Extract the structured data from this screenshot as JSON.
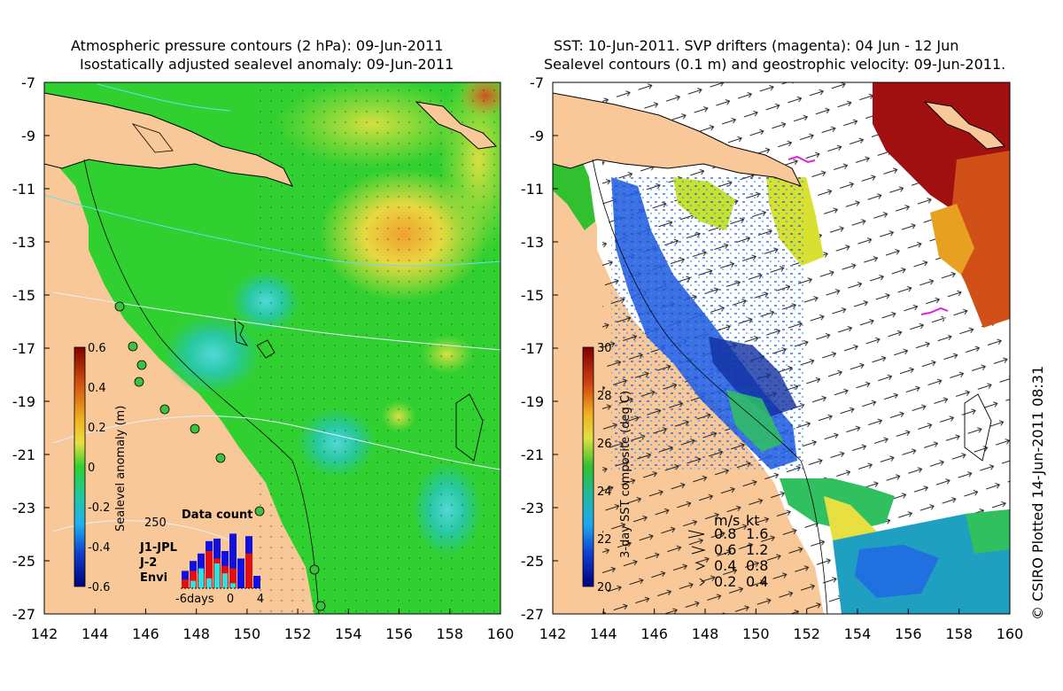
{
  "left_panel": {
    "title_line1": "Atmospheric pressure contours (2 hPa): 09-Jun-2011",
    "title_line2": "Isostatically adjusted sealevel anomaly: 09-Jun-2011",
    "colorbar_label": "Sealevel anomaly (m)",
    "colorbar_ticks": [
      "0.6",
      "0.4",
      "0.2",
      "0",
      "-0.2",
      "-0.4",
      "-0.6"
    ],
    "data_count": {
      "title": "Data count",
      "ymax_label": "250",
      "x_labels": [
        "-6days",
        "0",
        "4"
      ],
      "legend": [
        {
          "name": "J1-JPL",
          "color": "#1010e0"
        },
        {
          "name": "J-2",
          "color": "#e01010"
        },
        {
          "name": "Envi",
          "color": "#30e0e0"
        }
      ],
      "bars": [
        {
          "total": 70,
          "j2": 35,
          "envi": 0
        },
        {
          "total": 110,
          "j2": 70,
          "envi": 30
        },
        {
          "total": 140,
          "j2": 60,
          "envi": 80
        },
        {
          "total": 190,
          "j2": 150,
          "envi": 40
        },
        {
          "total": 200,
          "j2": 120,
          "envi": 100
        },
        {
          "total": 150,
          "j2": 90,
          "envi": 60
        },
        {
          "total": 220,
          "j2": 80,
          "envi": 20
        },
        {
          "total": 120,
          "j2": 0,
          "envi": 0
        },
        {
          "total": 210,
          "j2": 140,
          "envi": 0
        },
        {
          "total": 50,
          "j2": 0,
          "envi": 0
        }
      ]
    }
  },
  "right_panel": {
    "title_line1": "SST: 10-Jun-2011. SVP drifters (magenta): 04 Jun - 12 Jun",
    "title_line2": "Sealevel contours (0.1 m) and geostrophic velocity: 09-Jun-2011.",
    "colorbar_label": "3-day SST composite (deg C)",
    "colorbar_ticks": [
      "30",
      "28",
      "26",
      "24",
      "22",
      "20"
    ],
    "velocity_key": {
      "header_ms": "m/s",
      "header_kt": "kt",
      "rows": [
        {
          "ms": "0.8",
          "kt": "1.6"
        },
        {
          "ms": "0.6",
          "kt": "1.2"
        },
        {
          "ms": "0.4",
          "kt": "0.8"
        },
        {
          "ms": "0.2",
          "kt": "0.4"
        }
      ]
    }
  },
  "axes": {
    "lat_labels": [
      "-7",
      "-9",
      "-11",
      "-13",
      "-15",
      "-17",
      "-19",
      "-21",
      "-23",
      "-25",
      "-27"
    ],
    "lon_labels": [
      "142",
      "144",
      "146",
      "148",
      "150",
      "152",
      "154",
      "156",
      "158",
      "160"
    ]
  },
  "credit": "© CSIRO Plotted 14-Jun-2011 08:31",
  "colors": {
    "land": "#f8c898",
    "ocean_green": "#30d030",
    "ocean_yellow": "#e8e040",
    "ocean_cyan": "#30c8a0",
    "cloud": "#ffffff",
    "sst_blue": "#1050e0",
    "sst_darkred": "#a01010"
  }
}
